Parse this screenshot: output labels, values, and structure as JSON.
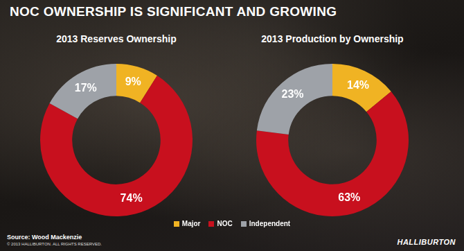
{
  "title": "NOC OWNERSHIP IS SIGNIFICANT AND GROWING",
  "chart_data": [
    {
      "type": "doughnut",
      "title": "2013 Reserves Ownership",
      "categories": [
        "Major",
        "NOC",
        "Independent"
      ],
      "values": [
        9,
        74,
        17
      ],
      "value_labels": [
        "9%",
        "74%",
        "17%"
      ],
      "colors": [
        "#f0b323",
        "#c8101e",
        "#9ea2a8"
      ],
      "data_labels": true,
      "legend": "bottom"
    },
    {
      "type": "doughnut",
      "title": "2013 Production by Ownership",
      "categories": [
        "Major",
        "NOC",
        "Independent"
      ],
      "values": [
        14,
        63,
        23
      ],
      "value_labels": [
        "14%",
        "63%",
        "23%"
      ],
      "colors": [
        "#f0b323",
        "#c8101e",
        "#9ea2a8"
      ],
      "data_labels": true,
      "legend": "bottom"
    }
  ],
  "source": "Source: Wood Mackenzie",
  "copyright": "© 2013 HALLIBURTON. ALL RIGHTS RESERVED.",
  "brand": "HALLIBURTON"
}
